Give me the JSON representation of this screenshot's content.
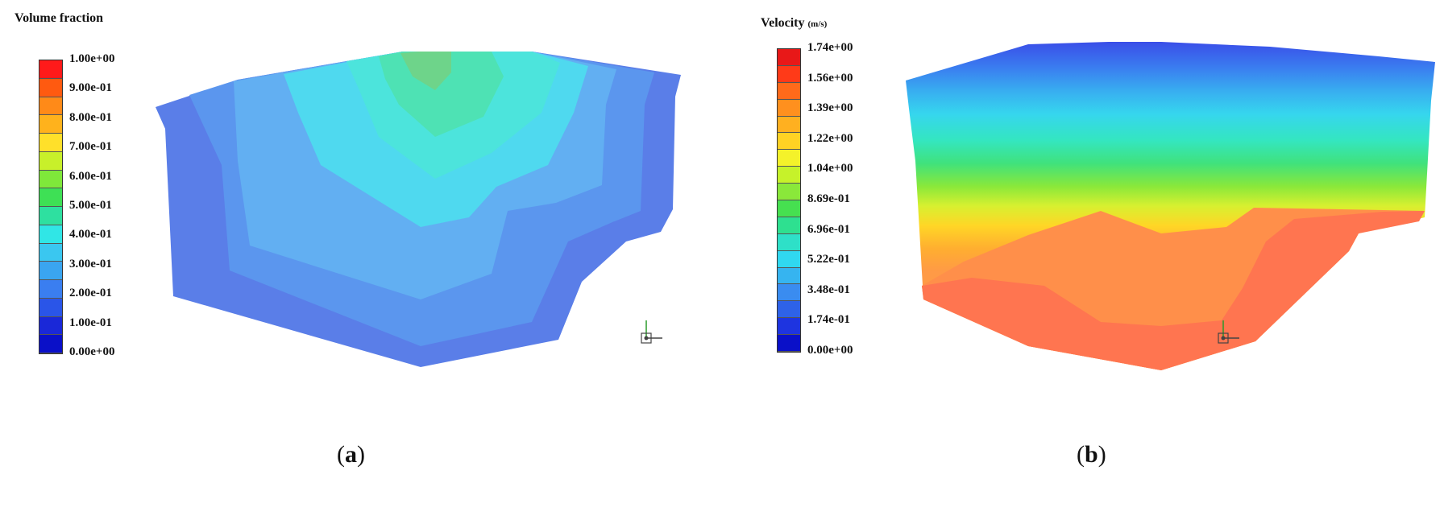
{
  "panels": [
    {
      "id": "a",
      "legend_title": "Volume fraction",
      "legend_unit": "",
      "ticks": [
        "1.00e+00",
        "9.00e-01",
        "8.00e-01",
        "7.00e-01",
        "6.00e-01",
        "5.00e-01",
        "4.00e-01",
        "3.00e-01",
        "2.00e-01",
        "1.00e-01",
        "0.00e+00"
      ],
      "colors": [
        "#ff1a1a",
        "#ff5a10",
        "#ff8a18",
        "#ffb21c",
        "#ffe02a",
        "#c8f02a",
        "#7fe83a",
        "#3ee055",
        "#2ee0a0",
        "#30e6e6",
        "#3ac7f0",
        "#3aa5f0",
        "#3a7ef0",
        "#2a55e8",
        "#1a28d8",
        "#0a10c8"
      ],
      "label": "a"
    },
    {
      "id": "b",
      "legend_title": "Velocity",
      "legend_unit": "(m/s)",
      "ticks": [
        "1.74e+00",
        "1.56e+00",
        "1.39e+00",
        "1.22e+00",
        "1.04e+00",
        "8.69e-01",
        "6.96e-01",
        "5.22e-01",
        "3.48e-01",
        "1.74e-01",
        "0.00e+00"
      ],
      "colors": [
        "#e81818",
        "#ff3a18",
        "#ff6a1a",
        "#ff901e",
        "#ffb020",
        "#ffd224",
        "#f4f22a",
        "#c6f22a",
        "#8ae83a",
        "#46e050",
        "#2ee090",
        "#2ee0c8",
        "#30d8f0",
        "#36b4f0",
        "#3a8cf0",
        "#2e62e8",
        "#1e34e0",
        "#0a10c8"
      ],
      "label": "b"
    }
  ]
}
